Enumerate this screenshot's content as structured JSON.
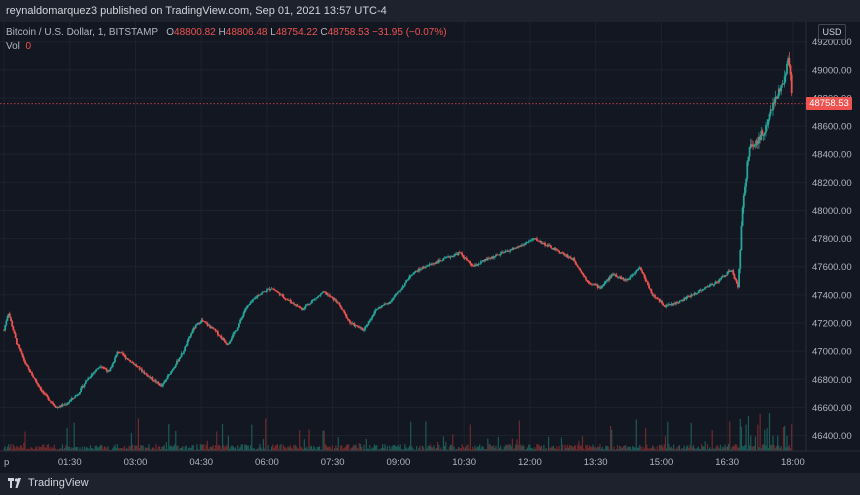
{
  "header": {
    "published_line": "reynaldomarquez3 published on TradingView.com, Sep 01, 2021 13:57 UTC-4"
  },
  "legend": {
    "symbol": "Bitcoin / U.S. Dollar, 1, BITSTAMP",
    "open_label": "O",
    "open": "48800.82",
    "high_label": "H",
    "high": "48806.48",
    "low_label": "L",
    "low": "48754.22",
    "close_label": "C",
    "close": "48758.53",
    "change": "−31.95 (−0.07%)",
    "vol_label": "Vol",
    "vol": "0"
  },
  "price_axis": {
    "currency": "USD",
    "last_price": "48758.53"
  },
  "footer": {
    "brand": "TradingView"
  },
  "colors": {
    "up": "#26a69a",
    "down": "#ef5350",
    "background": "#131722",
    "grid": "#1f2330"
  },
  "chart_data": {
    "type": "candlestick",
    "symbol": "Bitcoin / U.S. Dollar",
    "interval": "1",
    "exchange": "BITSTAMP",
    "y_ticks": [
      46400,
      46600,
      46800,
      47000,
      47200,
      47400,
      47600,
      47800,
      48000,
      48200,
      48400,
      48600,
      48800,
      49000,
      49200
    ],
    "y_tick_labels": [
      "46400.00",
      "46600.00",
      "46800.00",
      "47000.00",
      "47200.00",
      "47400.00",
      "47600.00",
      "47800.00",
      "48000.00",
      "48200.00",
      "48400.00",
      "48600.00",
      "48800.00",
      "49000.00",
      "49200.00"
    ],
    "x_ticks": [
      {
        "label": "p",
        "hour": 0.0
      },
      {
        "label": "01:30",
        "hour": 1.5
      },
      {
        "label": "03:00",
        "hour": 3.0
      },
      {
        "label": "04:30",
        "hour": 4.5
      },
      {
        "label": "06:00",
        "hour": 6.0
      },
      {
        "label": "07:30",
        "hour": 7.5
      },
      {
        "label": "09:00",
        "hour": 9.0
      },
      {
        "label": "10:30",
        "hour": 10.5
      },
      {
        "label": "12:00",
        "hour": 12.0
      },
      {
        "label": "13:30",
        "hour": 13.5
      },
      {
        "label": "15:00",
        "hour": 15.0
      },
      {
        "label": "16:30",
        "hour": 16.5
      },
      {
        "label": "18:00",
        "hour": 18.0
      }
    ],
    "x_range_hours": [
      0.0,
      18.3
    ],
    "ylim": [
      46290,
      49340
    ],
    "last_price": 48758.53,
    "price_path": [
      [
        0.0,
        47150
      ],
      [
        0.1,
        47280
      ],
      [
        0.3,
        47050
      ],
      [
        0.5,
        46900
      ],
      [
        0.7,
        46800
      ],
      [
        0.9,
        46700
      ],
      [
        1.2,
        46600
      ],
      [
        1.4,
        46620
      ],
      [
        1.7,
        46700
      ],
      [
        1.9,
        46800
      ],
      [
        2.2,
        46900
      ],
      [
        2.4,
        46850
      ],
      [
        2.6,
        47000
      ],
      [
        2.8,
        46950
      ],
      [
        3.0,
        46900
      ],
      [
        3.3,
        46820
      ],
      [
        3.6,
        46750
      ],
      [
        3.9,
        46900
      ],
      [
        4.1,
        47000
      ],
      [
        4.3,
        47150
      ],
      [
        4.5,
        47220
      ],
      [
        4.8,
        47150
      ],
      [
        5.1,
        47050
      ],
      [
        5.3,
        47150
      ],
      [
        5.5,
        47300
      ],
      [
        5.8,
        47400
      ],
      [
        6.1,
        47450
      ],
      [
        6.4,
        47380
      ],
      [
        6.8,
        47300
      ],
      [
        7.0,
        47350
      ],
      [
        7.3,
        47420
      ],
      [
        7.6,
        47350
      ],
      [
        7.9,
        47200
      ],
      [
        8.2,
        47150
      ],
      [
        8.5,
        47300
      ],
      [
        8.8,
        47350
      ],
      [
        9.0,
        47420
      ],
      [
        9.3,
        47550
      ],
      [
        9.6,
        47600
      ],
      [
        10.0,
        47650
      ],
      [
        10.4,
        47700
      ],
      [
        10.7,
        47600
      ],
      [
        11.0,
        47650
      ],
      [
        11.4,
        47700
      ],
      [
        11.8,
        47750
      ],
      [
        12.1,
        47800
      ],
      [
        12.4,
        47750
      ],
      [
        12.7,
        47700
      ],
      [
        13.0,
        47650
      ],
      [
        13.3,
        47500
      ],
      [
        13.6,
        47450
      ],
      [
        13.9,
        47550
      ],
      [
        14.2,
        47500
      ],
      [
        14.5,
        47600
      ],
      [
        14.8,
        47400
      ],
      [
        15.1,
        47320
      ],
      [
        15.4,
        47350
      ],
      [
        15.7,
        47400
      ],
      [
        16.0,
        47450
      ],
      [
        16.3,
        47500
      ],
      [
        16.6,
        47580
      ],
      [
        16.75,
        47450
      ],
      [
        16.85,
        48000
      ],
      [
        17.0,
        48450
      ],
      [
        17.2,
        48500
      ],
      [
        17.4,
        48600
      ],
      [
        17.6,
        48800
      ],
      [
        17.8,
        48900
      ],
      [
        17.9,
        49100
      ],
      [
        18.0,
        48760
      ]
    ],
    "volume_note": "volume histogram along bottom, mostly low with spikes near 16:30–18:00"
  }
}
